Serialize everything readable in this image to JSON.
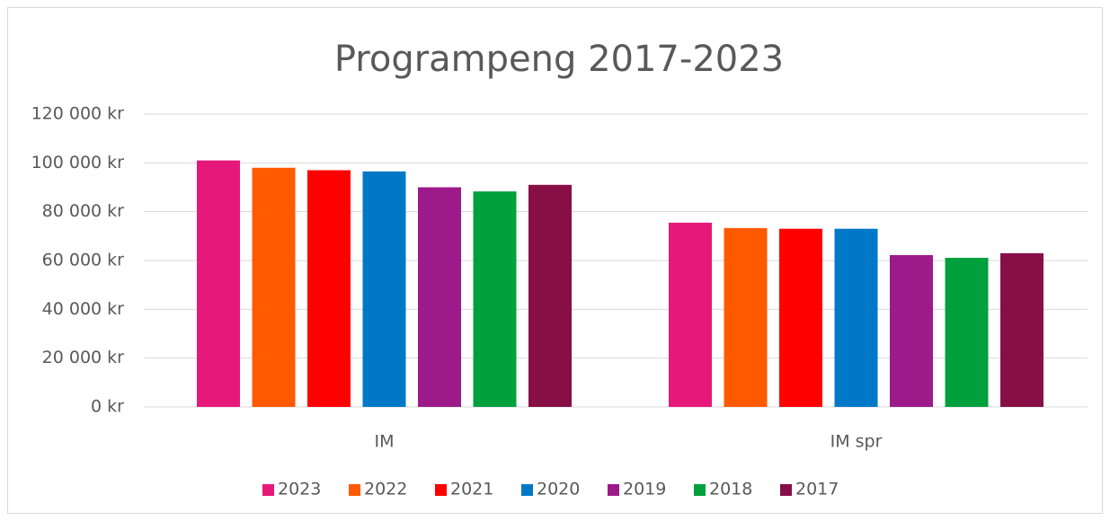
{
  "chart_data": {
    "type": "bar",
    "title": "Programpeng 2017-2023",
    "categories": [
      "IM",
      "IM spr"
    ],
    "series": [
      {
        "name": "2023",
        "color": "#e6197a",
        "values": [
          101000,
          75500
        ]
      },
      {
        "name": "2022",
        "color": "#ff5a00",
        "values": [
          98000,
          73300
        ]
      },
      {
        "name": "2021",
        "color": "#ff0000",
        "values": [
          97000,
          73000
        ]
      },
      {
        "name": "2020",
        "color": "#0078c8",
        "values": [
          96500,
          73000
        ]
      },
      {
        "name": "2019",
        "color": "#9c1a8a",
        "values": [
          90000,
          62200
        ]
      },
      {
        "name": "2018",
        "color": "#00a03c",
        "values": [
          88300,
          61100
        ]
      },
      {
        "name": "2017",
        "color": "#870f46",
        "values": [
          91000,
          63000
        ]
      }
    ],
    "ylim": [
      0,
      120000
    ],
    "yticks": [
      {
        "value": 0,
        "label": "0 kr"
      },
      {
        "value": 20000,
        "label": "20 000 kr"
      },
      {
        "value": 40000,
        "label": "40 000 kr"
      },
      {
        "value": 60000,
        "label": "60 000 kr"
      },
      {
        "value": 80000,
        "label": "80 000 kr"
      },
      {
        "value": 100000,
        "label": "100 000 kr"
      },
      {
        "value": 120000,
        "label": "120 000 kr"
      }
    ],
    "grid": true,
    "legend": "bottom"
  }
}
